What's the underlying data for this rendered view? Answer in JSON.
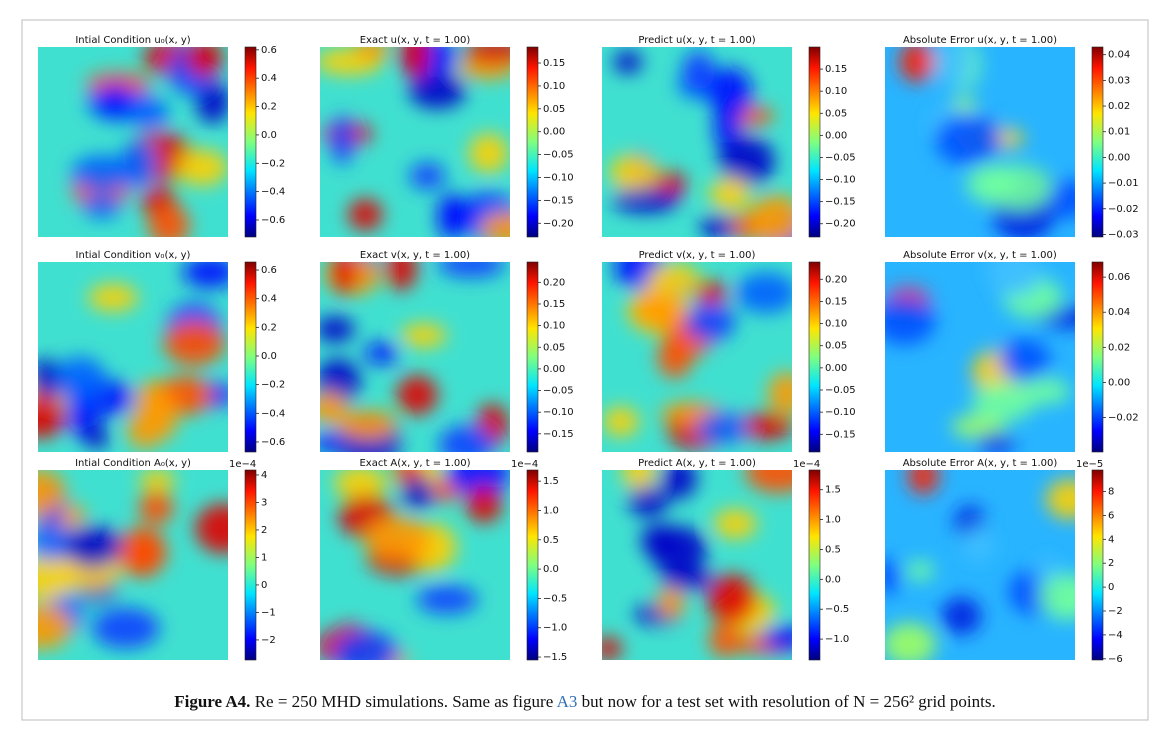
{
  "figure": {
    "panels": [
      {
        "title": "Intial Condition u₀(x, y)",
        "colorbar": {
          "clim": [
            -0.72,
            0.62
          ],
          "ticks": [
            0.6,
            0.4,
            0.2,
            {
              "value": 0.0,
              "label": "0.0"
            },
            {
              "value": -0.2,
              "label": "−0.2"
            },
            {
              "value": -0.4,
              "label": "−0.4"
            },
            {
              "value": -0.6,
              "label": "−0.6"
            }
          ]
        }
      },
      {
        "title": "Exact u(x, y, t = 1.00)",
        "colorbar": {
          "clim": [
            -0.23,
            0.185
          ],
          "ticks": [
            0.15,
            {
              "value": 0.1,
              "label": "0.10"
            },
            0.05,
            {
              "value": 0.0,
              "label": "0.00"
            },
            {
              "value": -0.05,
              "label": "−0.05"
            },
            {
              "value": -0.1,
              "label": "−0.10"
            },
            {
              "value": -0.15,
              "label": "−0.15"
            },
            {
              "value": -0.2,
              "label": "−0.20"
            }
          ]
        }
      },
      {
        "title": "Predict u(x, y, t = 1.00)",
        "colorbar": {
          "clim": [
            -0.23,
            0.2
          ],
          "ticks": [
            0.15,
            {
              "value": 0.1,
              "label": "0.10"
            },
            0.05,
            {
              "value": 0.0,
              "label": "0.00"
            },
            {
              "value": -0.05,
              "label": "−0.05"
            },
            {
              "value": -0.1,
              "label": "−0.10"
            },
            {
              "value": -0.15,
              "label": "−0.15"
            },
            {
              "value": -0.2,
              "label": "−0.20"
            }
          ]
        }
      },
      {
        "title": "Absolute Error u(x, y, t = 1.00)",
        "colorbar": {
          "clim": [
            -0.031,
            0.043
          ],
          "ticks": [
            0.04,
            0.03,
            0.02,
            0.01,
            {
              "value": 0.0,
              "label": "0.00"
            },
            {
              "value": -0.01,
              "label": "−0.01"
            },
            {
              "value": -0.02,
              "label": "−0.02"
            },
            {
              "value": -0.03,
              "label": "−0.03"
            }
          ]
        }
      },
      {
        "title": "Intial Condition v₀(x, y)",
        "colorbar": {
          "clim": [
            -0.67,
            0.656
          ],
          "ticks": [
            0.6,
            0.4,
            0.2,
            {
              "value": 0.0,
              "label": "0.0"
            },
            {
              "value": -0.2,
              "label": "−0.2"
            },
            {
              "value": -0.4,
              "label": "−0.4"
            },
            {
              "value": -0.6,
              "label": "−0.6"
            }
          ]
        }
      },
      {
        "title": "Exact v(x, y, t = 1.00)",
        "colorbar": {
          "clim": [
            -0.192,
            0.247
          ],
          "ticks": [
            {
              "value": 0.2,
              "label": "0.20"
            },
            0.15,
            {
              "value": 0.1,
              "label": "0.10"
            },
            0.05,
            {
              "value": 0.0,
              "label": "0.00"
            },
            {
              "value": -0.05,
              "label": "−0.05"
            },
            {
              "value": -0.1,
              "label": "−0.10"
            },
            {
              "value": -0.15,
              "label": "−0.15"
            }
          ]
        }
      },
      {
        "title": "Predict v(x, y, t = 1.00)",
        "colorbar": {
          "clim": [
            -0.19,
            0.239
          ],
          "ticks": [
            {
              "value": 0.2,
              "label": "0.20"
            },
            0.15,
            {
              "value": 0.1,
              "label": "0.10"
            },
            0.05,
            {
              "value": 0.0,
              "label": "0.00"
            },
            {
              "value": -0.05,
              "label": "−0.05"
            },
            {
              "value": -0.1,
              "label": "−0.10"
            },
            {
              "value": -0.15,
              "label": "−0.15"
            }
          ]
        }
      },
      {
        "title": "Absolute Error v(x, y, t = 1.00)",
        "colorbar": {
          "clim": [
            -0.0396,
            0.0686
          ],
          "ticks": [
            0.06,
            0.04,
            0.02,
            {
              "value": 0.0,
              "label": "0.00"
            },
            {
              "value": -0.02,
              "label": "−0.02"
            }
          ]
        }
      },
      {
        "title": "Intial Condition A₀(x, y)",
        "colorbar": {
          "scale": "1e−4",
          "clim": [
            -2.73,
            4.18
          ],
          "ticks": [
            4,
            3,
            2,
            1,
            0,
            {
              "value": -1,
              "label": "−1"
            },
            {
              "value": -2,
              "label": "−2"
            }
          ]
        }
      },
      {
        "title": "Exact A(x, y, t = 1.00)",
        "colorbar": {
          "scale": "1e−4",
          "clim": [
            -1.55,
            1.69
          ],
          "ticks": [
            1.5,
            {
              "value": 1.0,
              "label": "1.0"
            },
            0.5,
            {
              "value": 0.0,
              "label": "0.0"
            },
            {
              "value": -0.5,
              "label": "−0.5"
            },
            {
              "value": -1.0,
              "label": "−1.0"
            },
            {
              "value": -1.5,
              "label": "−1.5"
            }
          ]
        }
      },
      {
        "title": "Predict A(x, y, t = 1.00)",
        "colorbar": {
          "scale": "1e−4",
          "clim": [
            -1.35,
            1.83
          ],
          "ticks": [
            1.5,
            {
              "value": 1.0,
              "label": "1.0"
            },
            0.5,
            {
              "value": 0.0,
              "label": "0.0"
            },
            {
              "value": -0.5,
              "label": "−0.5"
            },
            {
              "value": -1.0,
              "label": "−1.0"
            }
          ]
        }
      },
      {
        "title": "Absolute Error A(x, y, t = 1.00)",
        "colorbar": {
          "scale": "1e−5",
          "clim": [
            -6.1,
            9.8
          ],
          "ticks": [
            8,
            6,
            4,
            2,
            0,
            {
              "value": -2,
              "label": "−2"
            },
            {
              "value": -4,
              "label": "−4"
            },
            {
              "value": -6,
              "label": "−6"
            }
          ]
        }
      }
    ],
    "caption": {
      "label": "Figure A4.",
      "text_before": "Re = 250 MHD simulations. Same as figure ",
      "link": "A3",
      "text_after": " but now for a test set with resolution of N = 256² grid points."
    }
  }
}
